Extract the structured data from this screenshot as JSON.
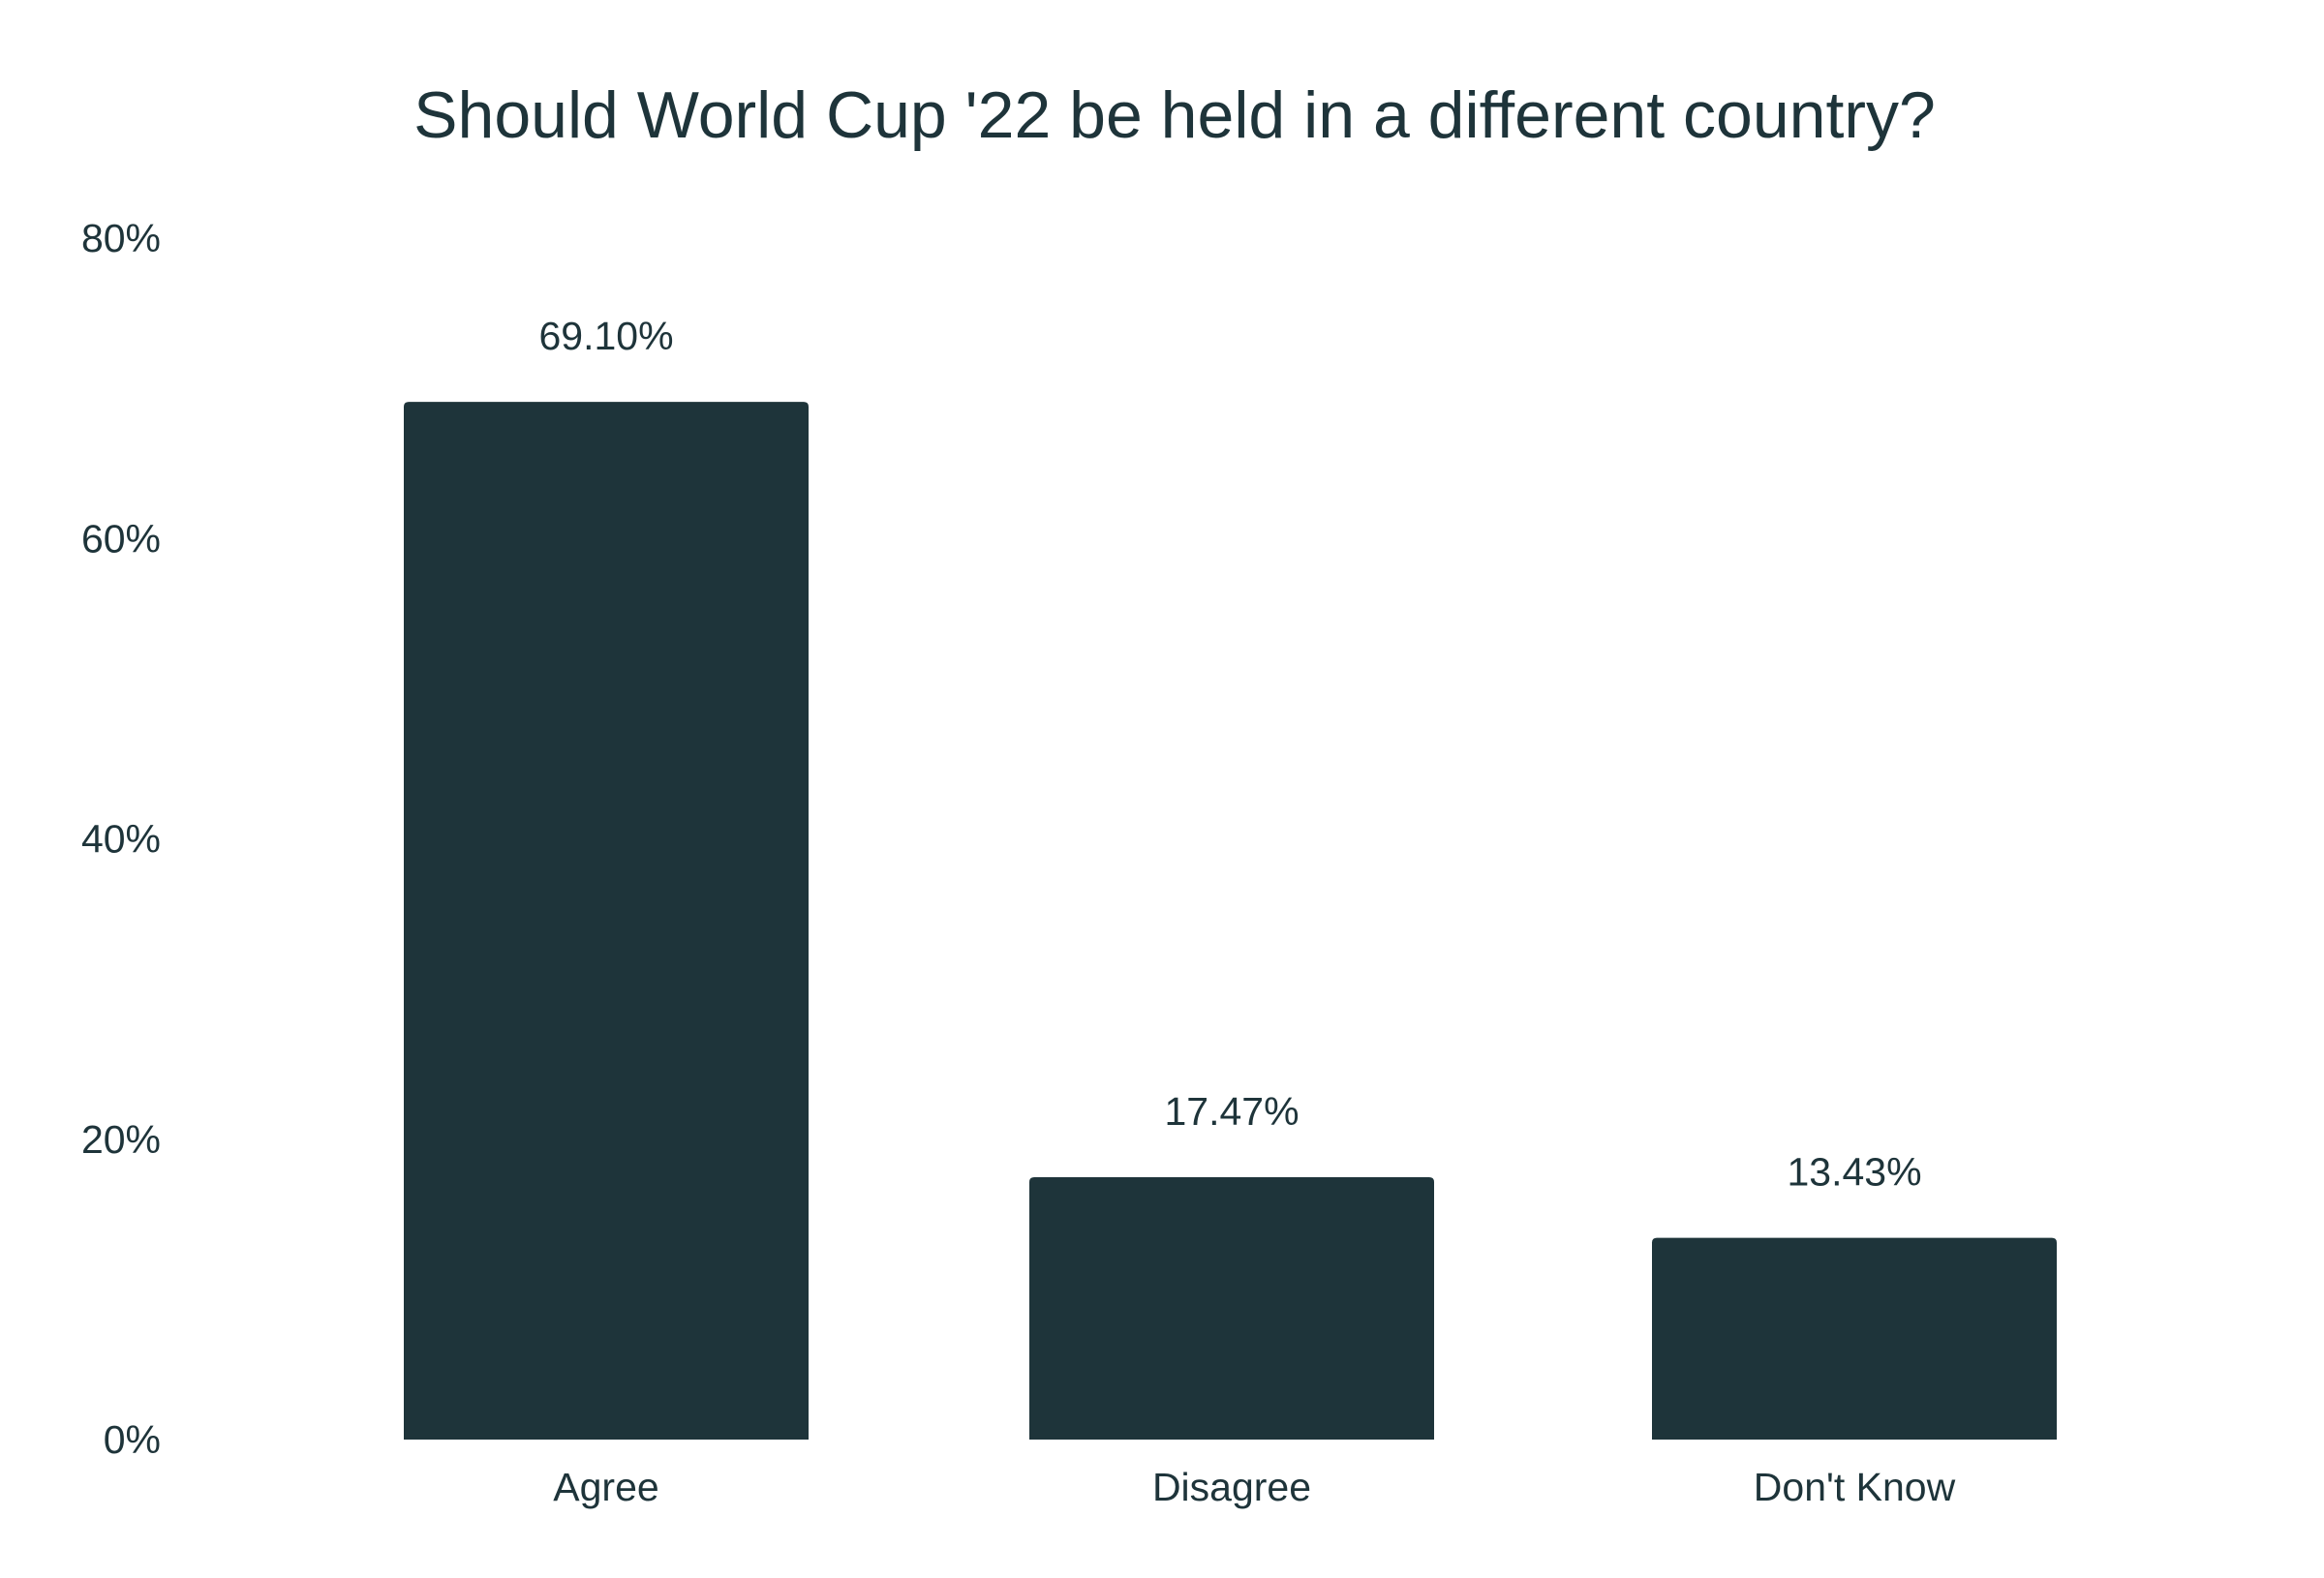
{
  "chart_data": {
    "type": "bar",
    "title": "Should World Cup '22 be held in a different country?",
    "xlabel": "",
    "ylabel": "",
    "categories": [
      "Agree",
      "Disagree",
      "Don't Know"
    ],
    "values": [
      69.1,
      17.47,
      13.43
    ],
    "value_labels": [
      "69.10%",
      "17.47%",
      "13.43%"
    ],
    "ylim": [
      0,
      80
    ],
    "yticks": [
      0,
      20,
      40,
      60,
      80
    ],
    "ytick_labels": [
      "0%",
      "20%",
      "40%",
      "60%",
      "80%"
    ],
    "grid": false,
    "legend": "none",
    "colors": {
      "bar": "#1e343a",
      "text": "#1e343a",
      "background": "#ffffff"
    }
  }
}
